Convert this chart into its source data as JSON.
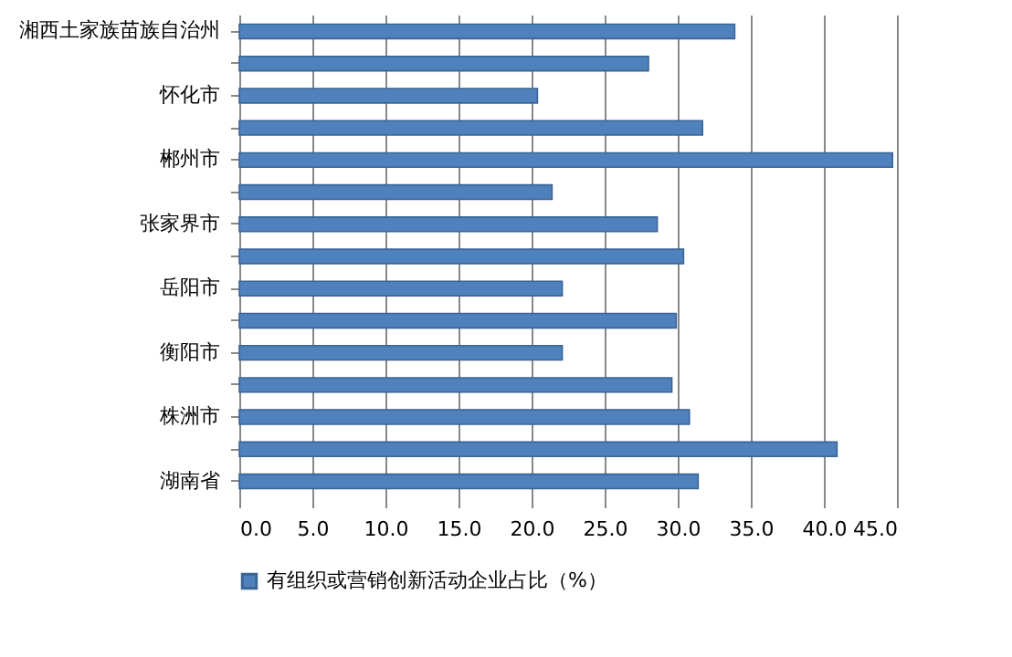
{
  "chart_data": {
    "type": "bar",
    "orientation": "horizontal",
    "categories": [
      "湘西土家族苗族自治州",
      null,
      "怀化市",
      null,
      "郴州市",
      null,
      "张家界市",
      null,
      "岳阳市",
      null,
      "衡阳市",
      null,
      "株洲市",
      null,
      "湖南省"
    ],
    "series": [
      {
        "name": "有组织或营销创新活动企业占比（%）",
        "color": "#4f81bd",
        "values": [
          33.9,
          28.0,
          20.4,
          31.7,
          44.7,
          21.4,
          28.6,
          30.4,
          22.1,
          29.9,
          22.1,
          29.6,
          30.8,
          40.9,
          31.4
        ]
      }
    ],
    "xlim": [
      0,
      45
    ],
    "xticks": [
      {
        "value": 0,
        "label": "0.0"
      },
      {
        "value": 5,
        "label": "5.0"
      },
      {
        "value": 10,
        "label": "10.0"
      },
      {
        "value": 15,
        "label": "15.0"
      },
      {
        "value": 20,
        "label": "20.0"
      },
      {
        "value": 25,
        "label": "25.0"
      },
      {
        "value": 30,
        "label": "30.0"
      },
      {
        "value": 35,
        "label": "35.0"
      },
      {
        "value": 40,
        "label": "40.0"
      },
      {
        "value": 45,
        "label": "45.0"
      }
    ],
    "grid": "x",
    "legend": "bottom"
  }
}
